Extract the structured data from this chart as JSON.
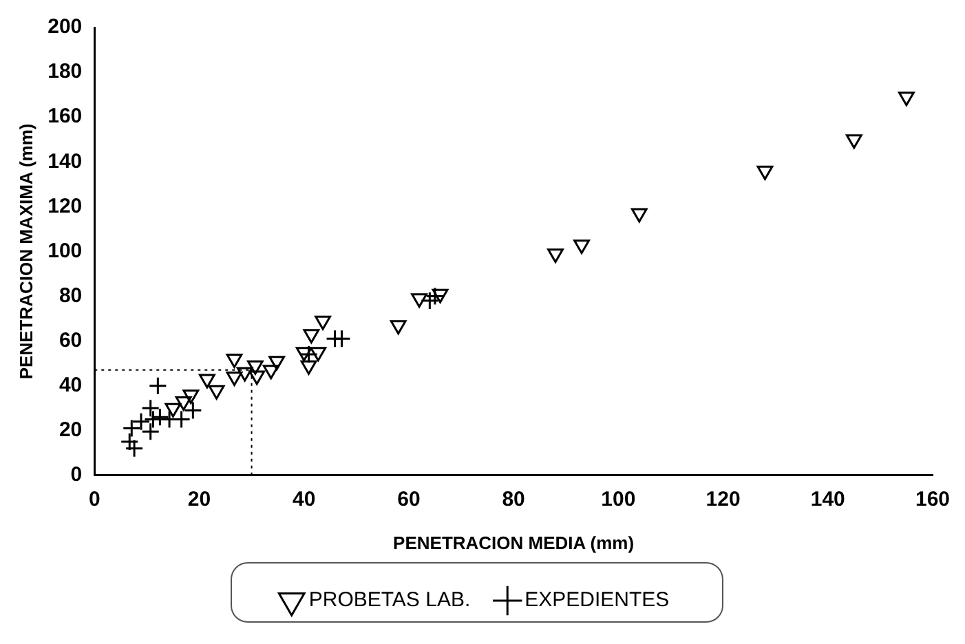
{
  "chart_data": {
    "type": "scatter",
    "xlabel": "PENETRACION MEDIA (mm)",
    "ylabel": "PENETRACION MAXIMA (mm)",
    "xlim": [
      0,
      160
    ],
    "xticks": [
      0,
      20,
      40,
      60,
      80,
      100,
      120,
      140,
      160
    ],
    "ylim": [
      0,
      200
    ],
    "yticks": [
      0,
      20,
      40,
      60,
      80,
      100,
      120,
      140,
      160,
      180,
      200
    ],
    "grid": false,
    "legend": "bottom",
    "series": [
      {
        "name": "PROBETAS LAB.",
        "color": "#000000",
        "marker": "triangle",
        "x": [
          155,
          145,
          128,
          104,
          93,
          88,
          66,
          62,
          58,
          43.6,
          41.4,
          40,
          42.7,
          40.9,
          34.8,
          33.7,
          31,
          30.7,
          28.7,
          26.7,
          26.7,
          23.3,
          21.5,
          18.4,
          17,
          15
        ],
        "values": [
          169,
          150,
          136,
          117,
          103,
          99,
          81,
          79,
          67,
          69,
          63,
          55,
          55,
          49,
          51,
          47,
          44.5,
          49,
          46,
          44,
          52,
          38,
          43,
          36,
          33,
          30
        ]
      },
      {
        "name": "EXPEDIENTES",
        "color": "#000000",
        "marker": "cross",
        "x": [
          65,
          64,
          47.2,
          45.9,
          40.9,
          12.1,
          18.8,
          16.6,
          14.3,
          12.5,
          10.7,
          11.2,
          8.9,
          7.1,
          10.7,
          6.7,
          7.6
        ],
        "values": [
          80,
          78,
          61,
          61,
          54,
          40,
          29,
          25,
          25,
          26,
          30,
          25,
          24,
          21,
          19.5,
          15,
          12
        ]
      }
    ],
    "ref_lines": [
      {
        "axis": "x",
        "value": 30,
        "line_style": "dotted"
      },
      {
        "axis": "y",
        "value": 47,
        "line_style": "dotted"
      }
    ]
  }
}
